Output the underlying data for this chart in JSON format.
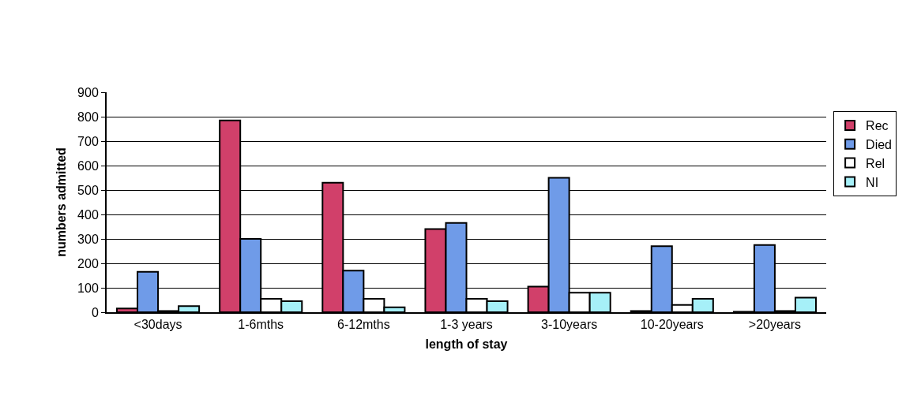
{
  "chart_data": {
    "type": "bar",
    "xlabel": "length of stay",
    "ylabel": "numbers admitted",
    "categories": [
      "<30days",
      "1-6mths",
      "6-12mths",
      "1-3 years",
      "3-10years",
      "10-20years",
      ">20years"
    ],
    "series": [
      {
        "name": "Rec",
        "color": "#d1406a",
        "values": [
          15,
          785,
          530,
          340,
          105,
          5,
          2
        ]
      },
      {
        "name": "Died",
        "color": "#6f9be8",
        "values": [
          165,
          300,
          170,
          365,
          550,
          270,
          275
        ]
      },
      {
        "name": "Rel",
        "color": "#ffffff",
        "values": [
          5,
          55,
          55,
          55,
          80,
          30,
          5
        ]
      },
      {
        "name": "NI",
        "color": "#a6f0f8",
        "values": [
          25,
          45,
          20,
          45,
          80,
          55,
          60
        ]
      }
    ],
    "ylim": [
      0,
      900
    ],
    "yticks": [
      0,
      100,
      200,
      300,
      400,
      500,
      600,
      700,
      800,
      900
    ],
    "grid": "y",
    "legend": "right"
  }
}
